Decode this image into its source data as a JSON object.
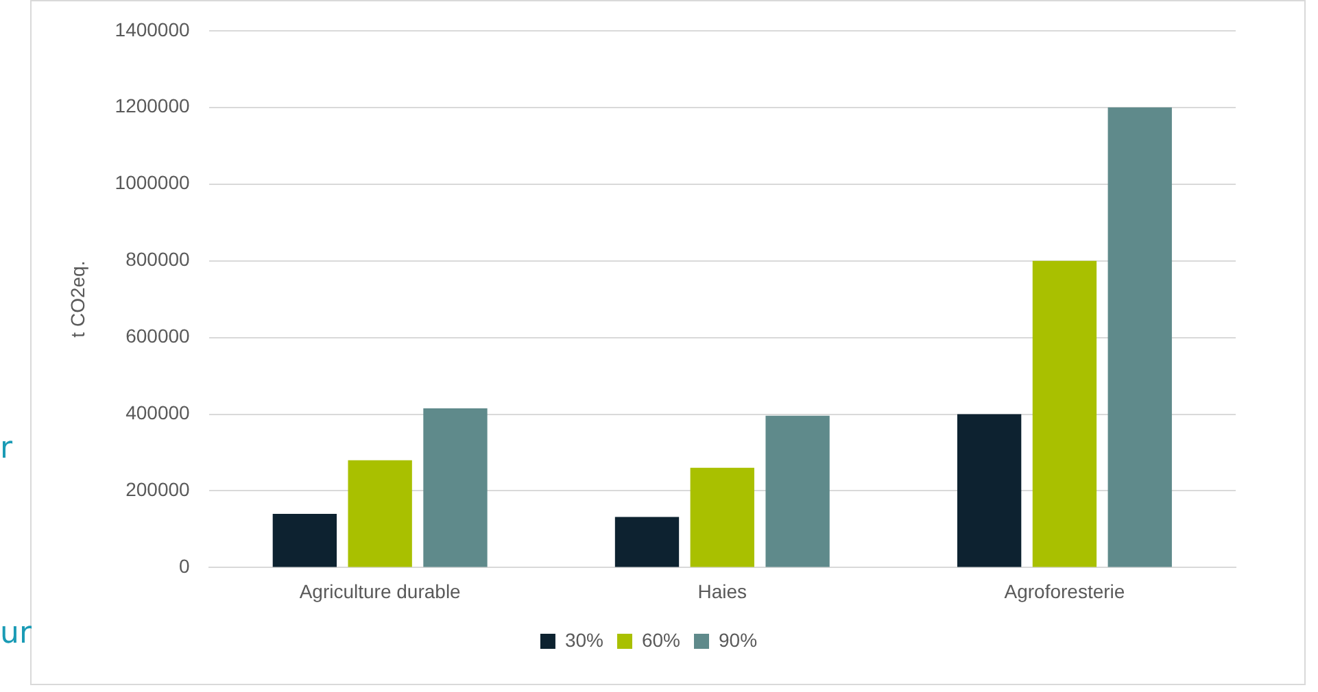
{
  "chart_data": {
    "type": "bar",
    "ylabel": "t CO2eq.",
    "categories": [
      "Agriculture durable",
      "Haies",
      "Agroforesterie"
    ],
    "series": [
      {
        "name": "30%",
        "color": "#0d2230",
        "values": [
          140000,
          132000,
          400000
        ]
      },
      {
        "name": "60%",
        "color": "#a9c000",
        "values": [
          280000,
          260000,
          800000
        ]
      },
      {
        "name": "90%",
        "color": "#5f8a8b",
        "values": [
          415000,
          396000,
          1200000
        ]
      }
    ],
    "ylim": [
      0,
      1400000
    ],
    "yticks": [
      0,
      200000,
      400000,
      600000,
      800000,
      1000000,
      1200000,
      1400000
    ],
    "grid": "y",
    "legend": "bottom",
    "annotations": [
      "r",
      "ur"
    ]
  }
}
